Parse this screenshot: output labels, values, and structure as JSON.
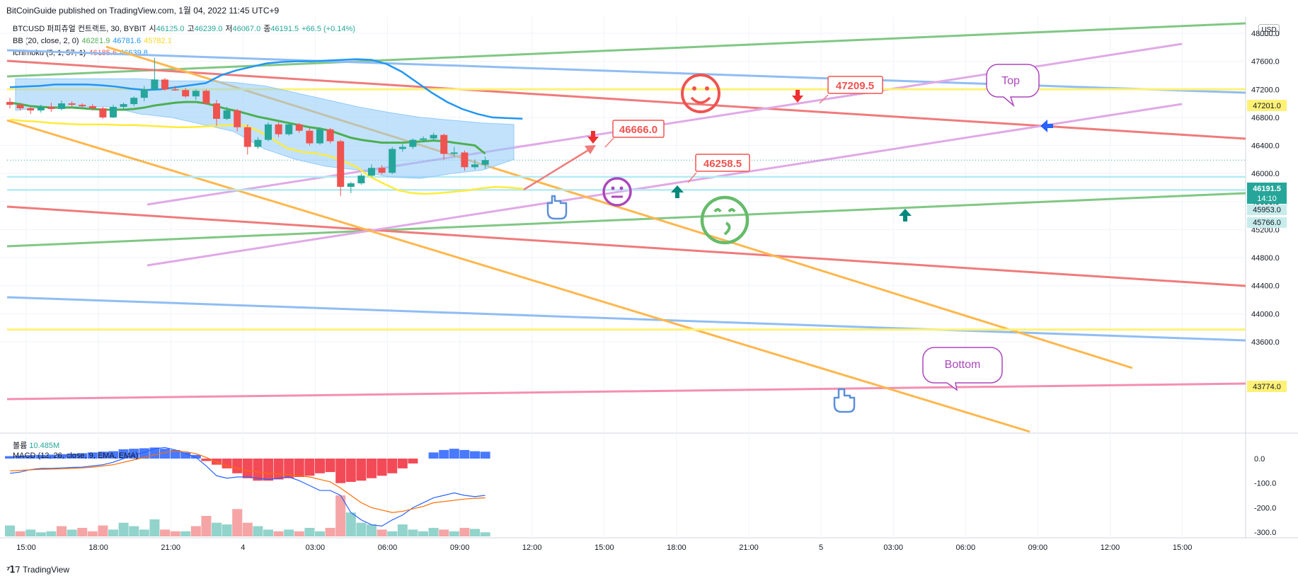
{
  "header": {
    "published": "BitCoinGuide published on TradingView.com, 1월 04, 2022 11:45 UTC+9",
    "currency": "USD"
  },
  "legend": {
    "symbol": "BTCUSD 퍼피츄얼 컨트랙트, 30, BYBIT",
    "open_label": "시",
    "open": "46125.0",
    "high_label": "고",
    "high": "46239.0",
    "low_label": "저",
    "low": "46067.0",
    "close_label": "종",
    "close": "46191.5",
    "change": "+66.5 (+0.14%)",
    "bb_label": "BB (20, close, 2, 0)",
    "bb_basis": "46281.9",
    "bb_upper": "46781.6",
    "bb_lower": "45782.1",
    "ichimoku_label": "Ichimoku (5, 1, 57, 1)",
    "ichi_a": "46185.6",
    "ichi_b": "46639.8",
    "volume_label": "볼륨",
    "volume": "10.485M",
    "macd_label": "MACD (12, 26, close, 9, EMA, EMA)"
  },
  "brand": "TradingView",
  "colors": {
    "up": "#26a69a",
    "down": "#ef5350",
    "bb_basis": "#4caf50",
    "bb_upper": "#2196f3",
    "bb_lower": "#ffeb3b",
    "cloud": "#90caf9",
    "orange": "#ffb74d",
    "green_line": "#81c784",
    "blue_line": "#90bdf3",
    "red_line": "#ef7b7b",
    "pink_line": "#e0a9e6",
    "yellow_line": "#fff176"
  },
  "annotations": {
    "label_46666": "46666.0",
    "label_47209": "47209.5",
    "label_46258": "46258.5",
    "bubble_top": "Top",
    "bubble_bottom": "Bottom"
  },
  "price_badges": {
    "level_47201": "47201.0",
    "last_price": "46191.5",
    "countdown": "14:10",
    "level_45953": "45953.0",
    "level_45766": "45766.0",
    "level_43774": "43774.0"
  },
  "chart_data": [
    {
      "type": "candlestick",
      "title": "BTCUSD 퍼피츄얼 컨트랙트, 30, BYBIT",
      "ylim": [
        43300,
        48100
      ],
      "y_ticks": [
        43600,
        44000,
        44400,
        44800,
        45200,
        45600,
        46000,
        46400,
        46800,
        47200,
        47600,
        48000
      ],
      "y_tick_labels": [
        "43600.0",
        "44000.0",
        "44400.0",
        "44800.0",
        "45200.0",
        "45600.0",
        "46000.0",
        "46400.0",
        "46800.0",
        "47200.0",
        "47600.0",
        "48000.0"
      ],
      "x_tick_labels": [
        "15:00",
        "18:00",
        "21:00",
        "4",
        "03:00",
        "06:00",
        "09:00",
        "12:00",
        "15:00",
        "18:00",
        "21:00",
        "5",
        "03:00",
        "06:00",
        "09:00",
        "12:00",
        "15:00"
      ],
      "ohlc": [
        [
          47020,
          47080,
          46930,
          46980
        ],
        [
          46980,
          47000,
          46900,
          46930
        ],
        [
          46930,
          46960,
          46850,
          46900
        ],
        [
          46900,
          46980,
          46870,
          46950
        ],
        [
          46950,
          47010,
          46880,
          46920
        ],
        [
          46920,
          47040,
          46900,
          47000
        ],
        [
          47000,
          47030,
          46950,
          46980
        ],
        [
          46980,
          47000,
          46940,
          46960
        ],
        [
          46960,
          46990,
          46900,
          46930
        ],
        [
          46930,
          46950,
          46780,
          46800
        ],
        [
          46800,
          46980,
          46790,
          46950
        ],
        [
          46950,
          47010,
          46900,
          46990
        ],
        [
          46990,
          47100,
          46960,
          47080
        ],
        [
          47080,
          47250,
          47030,
          47200
        ],
        [
          47200,
          47650,
          47180,
          47340
        ],
        [
          47340,
          47360,
          47180,
          47200
        ],
        [
          47200,
          47250,
          47180,
          47190
        ],
        [
          47190,
          47220,
          47080,
          47100
        ],
        [
          47100,
          47200,
          47050,
          47180
        ],
        [
          47180,
          47200,
          46980,
          47000
        ],
        [
          47000,
          47050,
          46680,
          46780
        ],
        [
          46780,
          46950,
          46760,
          46900
        ],
        [
          46900,
          46920,
          46600,
          46660
        ],
        [
          46660,
          46700,
          46270,
          46380
        ],
        [
          46380,
          46520,
          46350,
          46480
        ],
        [
          46480,
          46730,
          46460,
          46700
        ],
        [
          46700,
          46730,
          46520,
          46560
        ],
        [
          46560,
          46720,
          46540,
          46700
        ],
        [
          46700,
          46720,
          46580,
          46610
        ],
        [
          46610,
          46650,
          46400,
          46430
        ],
        [
          46430,
          46660,
          46410,
          46630
        ],
        [
          46630,
          46650,
          46430,
          46460
        ],
        [
          46460,
          46480,
          45680,
          45810
        ],
        [
          45810,
          45880,
          45720,
          45860
        ],
        [
          45860,
          46000,
          45840,
          45970
        ],
        [
          45970,
          46130,
          45950,
          46080
        ],
        [
          46080,
          46120,
          45990,
          46010
        ],
        [
          46010,
          46380,
          45990,
          46350
        ],
        [
          46350,
          46420,
          46310,
          46380
        ],
        [
          46380,
          46500,
          46350,
          46480
        ],
        [
          46480,
          46530,
          46450,
          46500
        ],
        [
          46500,
          46580,
          46470,
          46550
        ],
        [
          46550,
          46570,
          46200,
          46280
        ],
        [
          46280,
          46380,
          46240,
          46300
        ],
        [
          46300,
          46330,
          46040,
          46090
        ],
        [
          46090,
          46200,
          46060,
          46130
        ],
        [
          46125,
          46239,
          46067,
          46191.5
        ]
      ],
      "bb_basis": [
        47010,
        46990,
        46960,
        46950,
        46940,
        46940,
        46940,
        46930,
        46920,
        46910,
        46910,
        46910,
        46920,
        46940,
        46970,
        46990,
        47010,
        47020,
        47020,
        47000,
        46960,
        46920,
        46890,
        46850,
        46810,
        46780,
        46750,
        46720,
        46690,
        46660,
        46640,
        46610,
        46560,
        46510,
        46480,
        46460,
        46440,
        46440,
        46440,
        46450,
        46460,
        46470,
        46460,
        46440,
        46420,
        46400,
        46282
      ],
      "bb_upper": [
        47230,
        47240,
        47250,
        47270,
        47270,
        47270,
        47260,
        47240,
        47210,
        47190,
        47200,
        47230,
        47260,
        47290,
        47400,
        47470,
        47520,
        47570,
        47590,
        47600,
        47600,
        47610,
        47620,
        47630,
        47620,
        47560,
        47450,
        47300,
        47150,
        47020,
        46920,
        46850,
        46800,
        46790,
        46782
      ],
      "bb_lower": [
        46770,
        46750,
        46740,
        46720,
        46710,
        46700,
        46700,
        46700,
        46690,
        46690,
        46680,
        46670,
        46660,
        46660,
        46670,
        46680,
        46690,
        46680,
        46600,
        46480,
        46360,
        46310,
        46290,
        46250,
        46180,
        46090,
        45950,
        45850,
        45760,
        45720,
        45710,
        45720,
        45740,
        45760,
        45790,
        45810,
        45800,
        45782
      ],
      "ichimoku_cloud": {
        "span_a_top": [
          47350,
          47350,
          47350,
          47350,
          47350,
          47320,
          47320,
          47300,
          47250,
          47150,
          47050,
          46950,
          46870,
          46800,
          46760,
          46720,
          46700
        ],
        "span_b_bottom": [
          46900,
          46950,
          46950,
          46950,
          46850,
          46800,
          46700,
          46600,
          46350,
          46200,
          46100,
          46050,
          45950,
          45930,
          46000,
          46050,
          46200
        ]
      },
      "horizontal_levels": [
        47201.0,
        45953.0,
        45766.0,
        43774.0
      ],
      "last_price": 46191.5,
      "labels": [
        "46666.0",
        "47209.5",
        "46258.5",
        "Top",
        "Bottom"
      ]
    },
    {
      "type": "bar",
      "title": "볼륨",
      "value_latest": "10.485M",
      "values": [
        3.2,
        1.5,
        2.0,
        1.2,
        1.5,
        3.0,
        2.0,
        2.5,
        1.5,
        3.2,
        2.0,
        4.0,
        3.0,
        2.0,
        5.0,
        2.0,
        1.5,
        1.5,
        3.0,
        6.0,
        4.0,
        3.5,
        8.0,
        4.0,
        3.0,
        2.0,
        1.5,
        2.0,
        1.5,
        2.5,
        1.5,
        2.5,
        12.0,
        7.0,
        4.0,
        3.5,
        2.0,
        1.5,
        3.5,
        2.0,
        1.5,
        2.5,
        2.0,
        1.5,
        2.5,
        2.2,
        1.2
      ],
      "up": [
        true,
        false,
        true,
        true,
        true,
        false,
        true,
        false,
        false,
        false,
        true,
        true,
        true,
        true,
        true,
        false,
        false,
        true,
        false,
        false,
        true,
        true,
        false,
        false,
        true,
        true,
        false,
        true,
        false,
        true,
        true,
        false,
        false,
        true,
        true,
        true,
        false,
        true,
        true,
        true,
        true,
        true,
        false,
        true,
        false,
        true,
        true
      ]
    },
    {
      "type": "macd",
      "title": "MACD (12, 26, close, 9, EMA, EMA)",
      "ylim": [
        -310,
        60
      ],
      "y_ticks": [
        0,
        -100,
        -200,
        -300
      ],
      "y_tick_labels": [
        "0.0",
        "-100.0",
        "-200.0",
        "-300.0"
      ],
      "histogram": [
        10,
        12,
        14,
        15,
        16,
        18,
        20,
        22,
        25,
        28,
        30,
        38,
        40,
        42,
        45,
        40,
        35,
        25,
        15,
        -10,
        -25,
        -40,
        -60,
        -80,
        -90,
        -90,
        -85,
        -80,
        -75,
        -70,
        -60,
        -55,
        -100,
        -95,
        -90,
        -80,
        -70,
        -60,
        -40,
        -20,
        0,
        25,
        35,
        40,
        35,
        30,
        28
      ],
      "macd_line": [
        -60,
        -55,
        -45,
        -40,
        -40,
        -38,
        -36,
        -35,
        -30,
        -25,
        -15,
        0,
        15,
        25,
        40,
        45,
        35,
        20,
        5,
        -30,
        -70,
        -80,
        -75,
        -75,
        -80,
        -85,
        -80,
        -75,
        -90,
        -110,
        -130,
        -130,
        -150,
        -220,
        -250,
        -270,
        -275,
        -250,
        -230,
        -200,
        -180,
        -160,
        -150,
        -140,
        -150,
        -155,
        -150
      ],
      "signal_line": [
        -50,
        -48,
        -46,
        -44,
        -43,
        -42,
        -40,
        -38,
        -35,
        -30,
        -25,
        -15,
        -5,
        5,
        15,
        25,
        30,
        28,
        20,
        5,
        -15,
        -30,
        -40,
        -50,
        -55,
        -60,
        -62,
        -65,
        -70,
        -75,
        -85,
        -95,
        -120,
        -150,
        -180,
        -200,
        -210,
        -220,
        -215,
        -205,
        -195,
        -180,
        -175,
        -170,
        -165,
        -162,
        -160
      ]
    }
  ]
}
